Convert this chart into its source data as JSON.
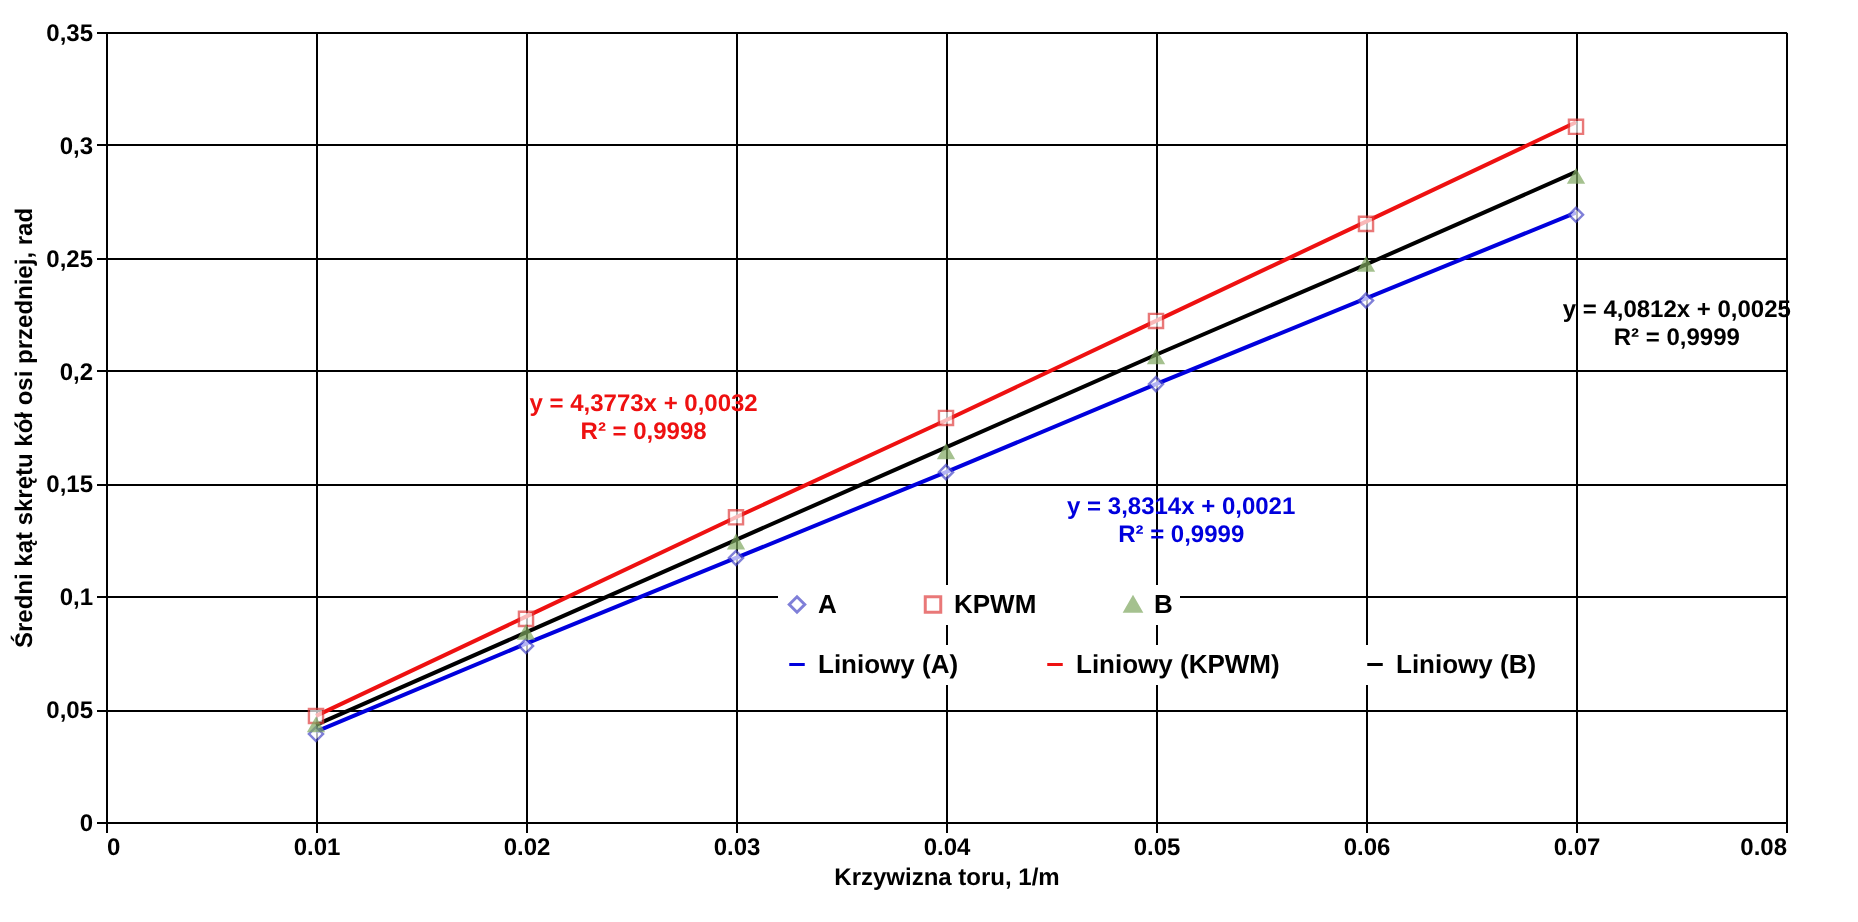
{
  "chart_data": {
    "type": "scatter",
    "xlabel": "Krzywizna toru, 1/m",
    "ylabel": "Średni kąt skrętu kół osi przedniej, rad",
    "x": [
      0.01,
      0.02,
      0.03,
      0.04,
      0.05,
      0.06,
      0.07
    ],
    "series": [
      {
        "name": "A",
        "marker": "diamond",
        "color": "#4a4ac8",
        "values": [
          0.039,
          0.078,
          0.117,
          0.155,
          0.194,
          0.231,
          0.269
        ]
      },
      {
        "name": "KPWM",
        "marker": "square",
        "color": "#e04040",
        "values": [
          0.047,
          0.09,
          0.135,
          0.179,
          0.222,
          0.265,
          0.308
        ]
      },
      {
        "name": "B",
        "marker": "triangle",
        "color": "#7fa860",
        "values": [
          0.043,
          0.084,
          0.124,
          0.164,
          0.206,
          0.247,
          0.286
        ]
      },
      {
        "name": "Liniowy (A)",
        "type": "line",
        "color": "#0000dd",
        "values": [
          0.04,
          0.079,
          0.117,
          0.155,
          0.194,
          0.232,
          0.27
        ]
      },
      {
        "name": "Liniowy (KPWM)",
        "type": "line",
        "color": "#ee1111",
        "values": [
          0.047,
          0.091,
          0.135,
          0.178,
          0.222,
          0.266,
          0.31
        ]
      },
      {
        "name": "Liniowy (B)",
        "type": "line",
        "color": "#000000",
        "values": [
          0.043,
          0.084,
          0.125,
          0.166,
          0.207,
          0.247,
          0.288
        ]
      }
    ],
    "annotations": [
      "y = 3,8314x  + 0,0021\nR² = 0,9999",
      "y = 4,3773x  + 0,0032\nR² = 0,9998",
      "y = 4,0812x  + 0,0025\nR² = 0,9999"
    ],
    "xlim": [
      0,
      0.08
    ],
    "xticks": [
      0,
      0.01,
      0.02,
      0.03,
      0.04,
      0.05,
      0.06,
      0.07,
      0.08
    ],
    "ylim": [
      0,
      0.35
    ],
    "yticks": [
      {
        "value": 0,
        "label": "0"
      },
      {
        "value": 0.05,
        "label": "0,05"
      },
      {
        "value": 0.1,
        "label": "0,1"
      },
      {
        "value": 0.15,
        "label": "0,15"
      },
      {
        "value": 0.2,
        "label": "0,2"
      },
      {
        "value": 0.25,
        "label": "0,25"
      },
      {
        "value": 0.3,
        "label": "0,3"
      },
      {
        "value": 0.35,
        "label": "0,35"
      }
    ],
    "grid": true,
    "legend": "bottom",
    "line_style": "solid"
  }
}
